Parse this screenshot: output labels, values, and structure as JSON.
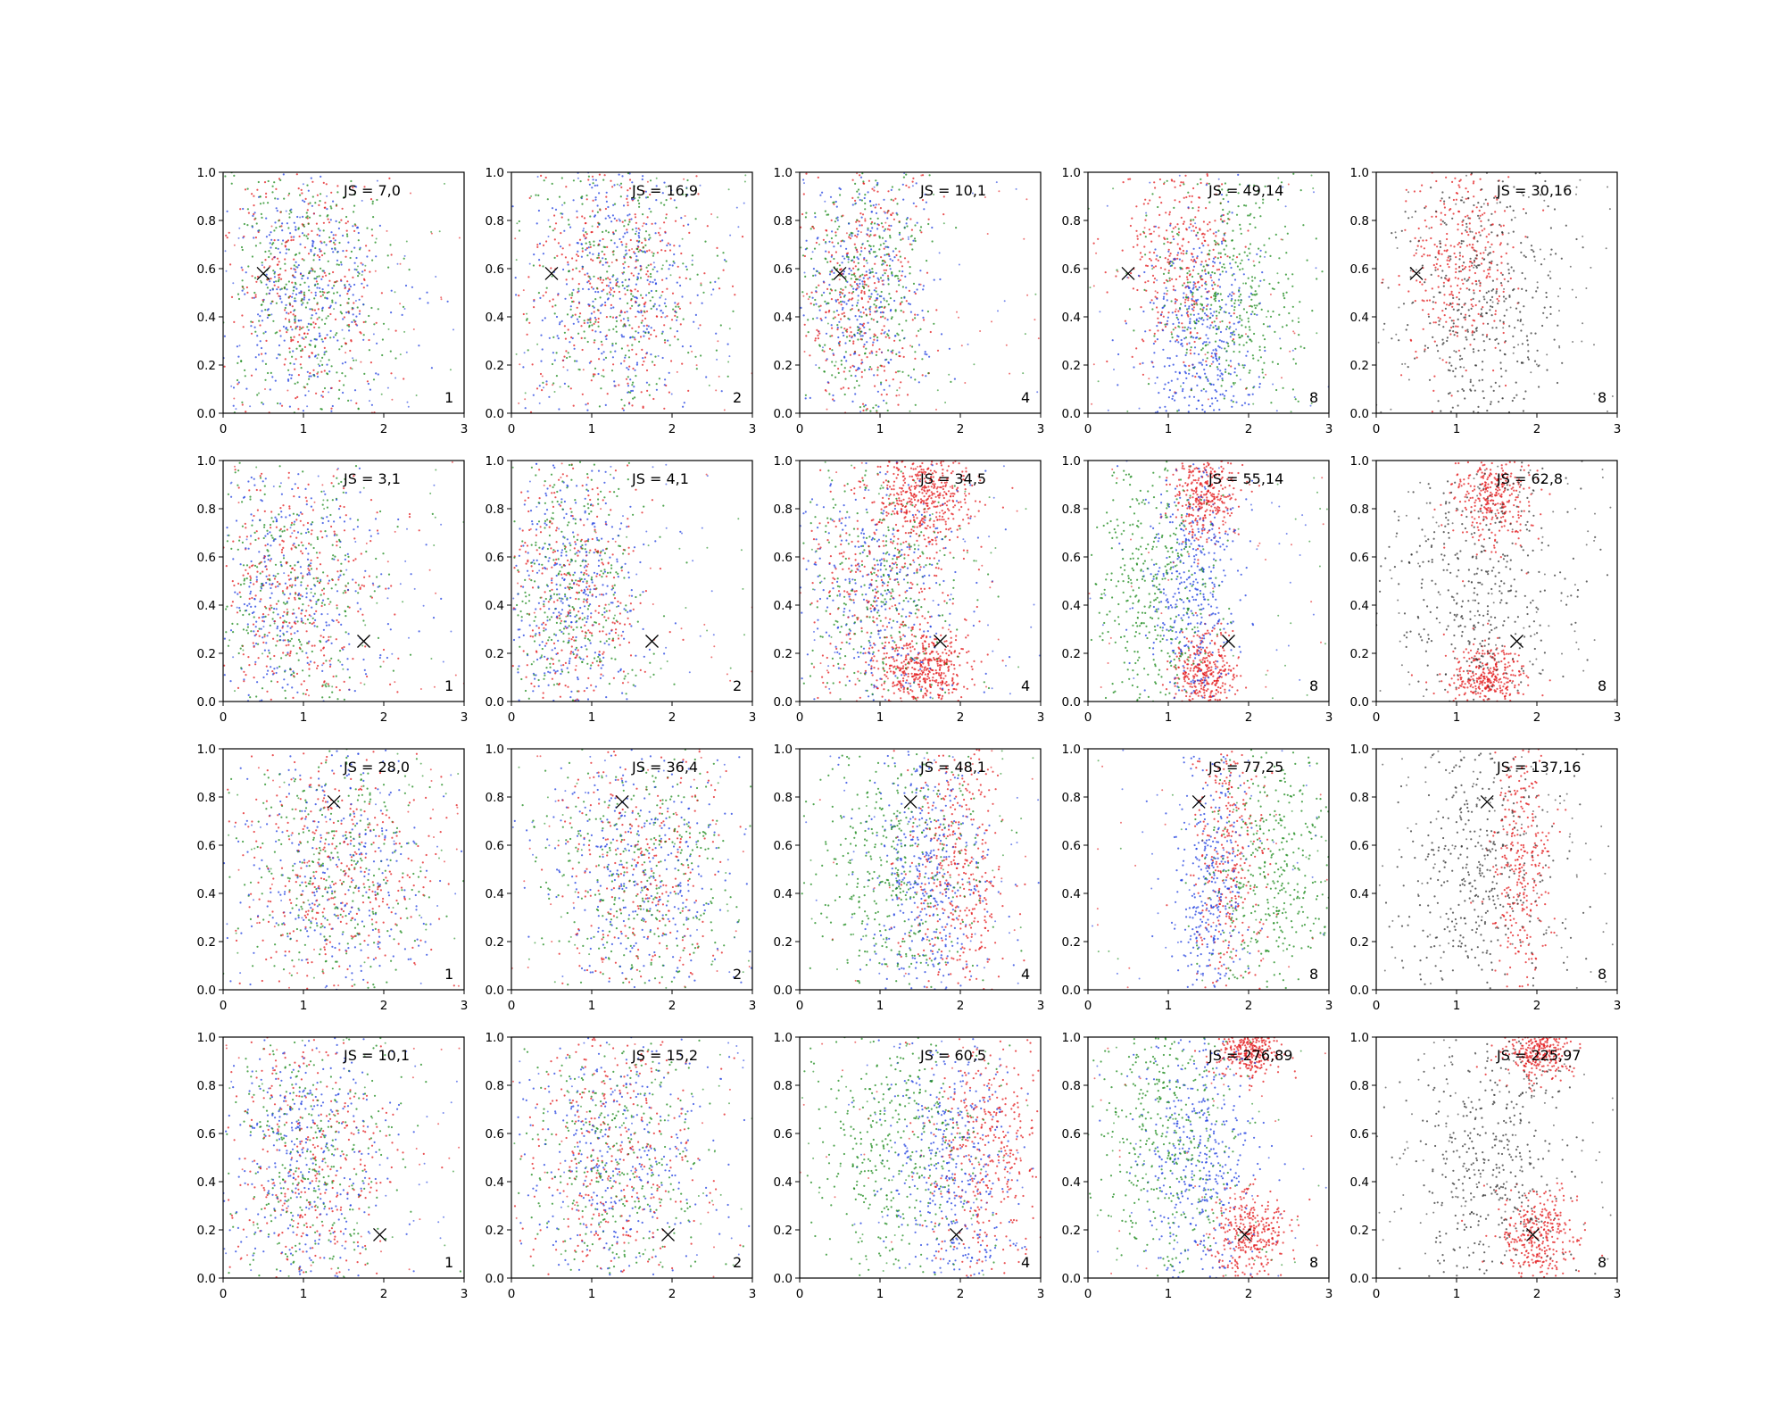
{
  "chart_data": {
    "type": "scatter",
    "layout": {
      "rows": 4,
      "cols": 5
    },
    "xlim": [
      0,
      3
    ],
    "ylim": [
      0,
      1
    ],
    "xticks": [
      "0",
      "1",
      "2",
      "3"
    ],
    "yticks": [
      "0.0",
      "0.2",
      "0.4",
      "0.6",
      "0.8",
      "1.0"
    ],
    "colors": {
      "red": "#e31a1c",
      "green": "#1a8a1a",
      "blue": "#1f3fe0",
      "black": "#333333"
    },
    "panels": [
      {
        "js": "JS = 7,0",
        "k": "1",
        "marker": [
          0.5,
          0.58
        ],
        "mode": "mixed",
        "clusters": [
          {
            "cx": 1.05,
            "cy": 0.5,
            "sx": 0.5,
            "sy": 0.3
          }
        ]
      },
      {
        "js": "JS = 16,9",
        "k": "2",
        "marker": [
          0.5,
          0.58
        ],
        "mode": "mixed",
        "clusters": [
          {
            "cx": 1.3,
            "cy": 0.55,
            "sx": 0.55,
            "sy": 0.3
          }
        ]
      },
      {
        "js": "JS = 10,1",
        "k": "4",
        "marker": [
          0.5,
          0.58
        ],
        "mode": "mixed",
        "clusters": [
          {
            "cx": 0.8,
            "cy": 0.5,
            "sx": 0.4,
            "sy": 0.3
          }
        ]
      },
      {
        "js": "JS = 49,14",
        "k": "8",
        "marker": [
          0.5,
          0.58
        ],
        "mode": "rgb",
        "clusters": [
          {
            "color": "red",
            "cx": 1.15,
            "cy": 0.65,
            "sx": 0.35,
            "sy": 0.22
          },
          {
            "color": "blue",
            "cx": 1.4,
            "cy": 0.3,
            "sx": 0.35,
            "sy": 0.25
          },
          {
            "color": "green",
            "cx": 1.8,
            "cy": 0.5,
            "sx": 0.45,
            "sy": 0.3
          }
        ]
      },
      {
        "js": "JS = 30,16",
        "k": "8",
        "marker": [
          0.5,
          0.58
        ],
        "mode": "rb",
        "clusters": [
          {
            "color": "red",
            "cx": 1.05,
            "cy": 0.62,
            "sx": 0.35,
            "sy": 0.22
          },
          {
            "color": "black",
            "cx": 1.3,
            "cy": 0.45,
            "sx": 0.5,
            "sy": 0.3
          }
        ]
      },
      {
        "js": "JS = 3,1",
        "k": "1",
        "marker": [
          1.75,
          0.25
        ],
        "mode": "mixed",
        "clusters": [
          {
            "cx": 0.9,
            "cy": 0.45,
            "sx": 0.55,
            "sy": 0.3
          }
        ]
      },
      {
        "js": "JS = 4,1",
        "k": "2",
        "marker": [
          1.75,
          0.25
        ],
        "mode": "mixed",
        "clusters": [
          {
            "cx": 0.75,
            "cy": 0.45,
            "sx": 0.45,
            "sy": 0.3
          }
        ]
      },
      {
        "js": "JS = 34,5",
        "k": "4",
        "marker": [
          1.75,
          0.25
        ],
        "mode": "mixed",
        "clusters": [
          {
            "color": "red",
            "cx": 1.55,
            "cy": 0.85,
            "sx": 0.3,
            "sy": 0.1
          },
          {
            "color": "red",
            "cx": 1.5,
            "cy": 0.12,
            "sx": 0.3,
            "sy": 0.08
          },
          {
            "cx": 1.0,
            "cy": 0.45,
            "sx": 0.55,
            "sy": 0.3
          }
        ]
      },
      {
        "js": "JS = 55,14",
        "k": "8",
        "marker": [
          1.75,
          0.25
        ],
        "mode": "rgb",
        "clusters": [
          {
            "color": "red",
            "cx": 1.45,
            "cy": 0.85,
            "sx": 0.2,
            "sy": 0.1
          },
          {
            "color": "red",
            "cx": 1.45,
            "cy": 0.12,
            "sx": 0.2,
            "sy": 0.08
          },
          {
            "color": "blue",
            "cx": 1.3,
            "cy": 0.5,
            "sx": 0.3,
            "sy": 0.3
          },
          {
            "color": "green",
            "cx": 0.8,
            "cy": 0.5,
            "sx": 0.4,
            "sy": 0.3
          }
        ]
      },
      {
        "js": "JS = 62,8",
        "k": "8",
        "marker": [
          1.75,
          0.25
        ],
        "mode": "rb",
        "clusters": [
          {
            "color": "red",
            "cx": 1.45,
            "cy": 0.85,
            "sx": 0.25,
            "sy": 0.1
          },
          {
            "color": "red",
            "cx": 1.4,
            "cy": 0.1,
            "sx": 0.25,
            "sy": 0.07
          },
          {
            "color": "black",
            "cx": 1.3,
            "cy": 0.5,
            "sx": 0.55,
            "sy": 0.3
          }
        ]
      },
      {
        "js": "JS = 28,0",
        "k": "1",
        "marker": [
          1.38,
          0.78
        ],
        "mode": "mixed",
        "clusters": [
          {
            "cx": 1.4,
            "cy": 0.5,
            "sx": 0.6,
            "sy": 0.3
          }
        ]
      },
      {
        "js": "JS = 36,4",
        "k": "2",
        "marker": [
          1.38,
          0.78
        ],
        "mode": "mixed",
        "clusters": [
          {
            "cx": 1.6,
            "cy": 0.5,
            "sx": 0.6,
            "sy": 0.3
          }
        ]
      },
      {
        "js": "JS = 48,1",
        "k": "4",
        "marker": [
          1.38,
          0.78
        ],
        "mode": "rgb",
        "clusters": [
          {
            "color": "red",
            "cx": 1.95,
            "cy": 0.5,
            "sx": 0.3,
            "sy": 0.3
          },
          {
            "color": "blue",
            "cx": 1.55,
            "cy": 0.5,
            "sx": 0.4,
            "sy": 0.3
          },
          {
            "color": "green",
            "cx": 1.1,
            "cy": 0.5,
            "sx": 0.55,
            "sy": 0.3
          }
        ]
      },
      {
        "js": "JS = 77,25",
        "k": "8",
        "marker": [
          1.38,
          0.78
        ],
        "mode": "rgb",
        "clusters": [
          {
            "color": "red",
            "cx": 1.75,
            "cy": 0.55,
            "sx": 0.2,
            "sy": 0.3
          },
          {
            "color": "blue",
            "cx": 1.5,
            "cy": 0.4,
            "sx": 0.25,
            "sy": 0.3
          },
          {
            "color": "green",
            "cx": 2.3,
            "cy": 0.5,
            "sx": 0.4,
            "sy": 0.3
          }
        ]
      },
      {
        "js": "JS = 137,16",
        "k": "8",
        "marker": [
          1.38,
          0.78
        ],
        "mode": "rb",
        "clusters": [
          {
            "color": "red",
            "cx": 1.8,
            "cy": 0.55,
            "sx": 0.2,
            "sy": 0.3
          },
          {
            "color": "black",
            "cx": 1.3,
            "cy": 0.5,
            "sx": 0.5,
            "sy": 0.3
          }
        ]
      },
      {
        "js": "JS = 10,1",
        "k": "1",
        "marker": [
          1.95,
          0.18
        ],
        "mode": "mixed",
        "clusters": [
          {
            "cx": 1.1,
            "cy": 0.5,
            "sx": 0.55,
            "sy": 0.3
          }
        ]
      },
      {
        "js": "JS = 15,2",
        "k": "2",
        "marker": [
          1.95,
          0.18
        ],
        "mode": "mixed",
        "clusters": [
          {
            "cx": 1.3,
            "cy": 0.5,
            "sx": 0.55,
            "sy": 0.3
          }
        ]
      },
      {
        "js": "JS = 60,5",
        "k": "4",
        "marker": [
          1.95,
          0.18
        ],
        "mode": "rgb",
        "clusters": [
          {
            "color": "red",
            "cx": 2.3,
            "cy": 0.55,
            "sx": 0.35,
            "sy": 0.3
          },
          {
            "color": "blue",
            "cx": 1.9,
            "cy": 0.45,
            "sx": 0.4,
            "sy": 0.3
          },
          {
            "color": "green",
            "cx": 1.2,
            "cy": 0.55,
            "sx": 0.55,
            "sy": 0.3
          }
        ]
      },
      {
        "js": "JS = 276,89",
        "k": "8",
        "marker": [
          1.95,
          0.18
        ],
        "mode": "rgb",
        "clusters": [
          {
            "color": "red",
            "cx": 2.0,
            "cy": 0.18,
            "sx": 0.25,
            "sy": 0.1
          },
          {
            "color": "red",
            "cx": 2.0,
            "cy": 0.95,
            "sx": 0.2,
            "sy": 0.06
          },
          {
            "color": "blue",
            "cx": 1.4,
            "cy": 0.5,
            "sx": 0.35,
            "sy": 0.3
          },
          {
            "color": "green",
            "cx": 1.0,
            "cy": 0.55,
            "sx": 0.45,
            "sy": 0.3
          }
        ]
      },
      {
        "js": "JS = 225,97",
        "k": "8",
        "marker": [
          1.95,
          0.18
        ],
        "mode": "rb",
        "clusters": [
          {
            "color": "red",
            "cx": 2.0,
            "cy": 0.18,
            "sx": 0.25,
            "sy": 0.1
          },
          {
            "color": "red",
            "cx": 2.0,
            "cy": 0.95,
            "sx": 0.2,
            "sy": 0.06
          },
          {
            "color": "black",
            "cx": 1.4,
            "cy": 0.5,
            "sx": 0.5,
            "sy": 0.3
          }
        ]
      }
    ]
  }
}
